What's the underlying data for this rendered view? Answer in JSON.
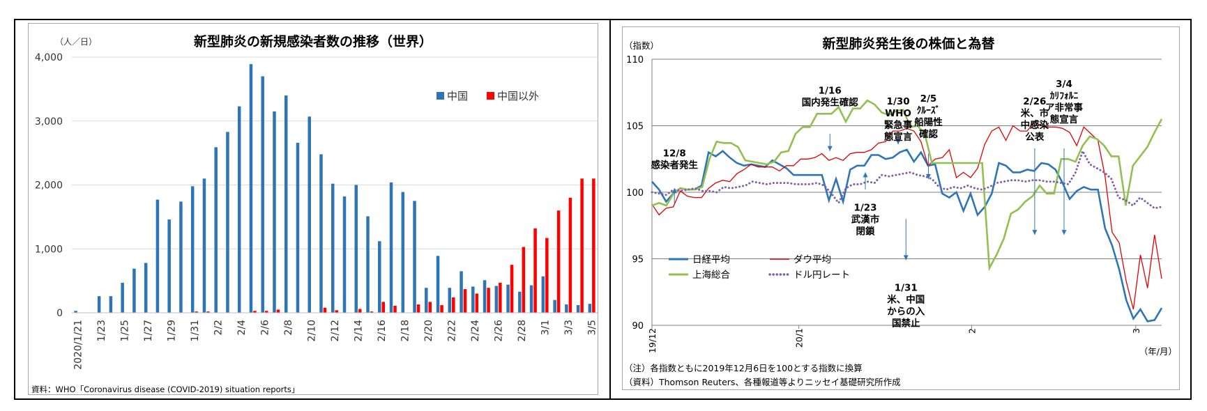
{
  "left": {
    "chart_data": {
      "type": "bar",
      "title": "新型肺炎の新規感染者数の推移（世界）",
      "ylabel": "（人／日）",
      "ylim": [
        0,
        4000
      ],
      "yticks": [
        "4,000",
        "3,000",
        "2,000",
        "1,000",
        "0"
      ],
      "ytick_values": [
        4000,
        3000,
        2000,
        1000,
        0
      ],
      "categories": [
        "2020/1/21",
        "1/22",
        "1/23",
        "1/24",
        "1/25",
        "1/26",
        "1/27",
        "1/28",
        "1/29",
        "1/30",
        "1/31",
        "2/1",
        "2/2",
        "2/3",
        "2/4",
        "2/5",
        "2/6",
        "2/7",
        "2/8",
        "2/9",
        "2/10",
        "2/11",
        "2/12",
        "2/13",
        "2/14",
        "2/15",
        "2/16",
        "2/17",
        "2/18",
        "2/19",
        "2/20",
        "2/21",
        "2/22",
        "2/23",
        "2/24",
        "2/25",
        "2/26",
        "2/27",
        "2/28",
        "2/29",
        "3/1",
        "3/2",
        "3/3",
        "3/4",
        "3/5"
      ],
      "xtick_labels": [
        "2020/1/21",
        "1/23",
        "1/25",
        "1/27",
        "1/29",
        "1/31",
        "2/2",
        "2/4",
        "2/6",
        "2/8",
        "2/10",
        "2/12",
        "2/14",
        "2/16",
        "2/18",
        "2/20",
        "2/22",
        "2/24",
        "2/26",
        "2/28",
        "3/1",
        "3/3",
        "3/5"
      ],
      "series": [
        {
          "name": "中国",
          "color": "#2e75b6",
          "values": [
            30,
            0,
            260,
            260,
            470,
            690,
            780,
            1770,
            1460,
            1740,
            1980,
            2100,
            2590,
            2830,
            3230,
            3890,
            3700,
            3150,
            3400,
            2660,
            3070,
            2480,
            2020,
            1820,
            2000,
            1510,
            1120,
            2040,
            1890,
            1750,
            390,
            890,
            390,
            650,
            410,
            510,
            420,
            440,
            330,
            430,
            570,
            200,
            130,
            120,
            140
          ]
        },
        {
          "name": "中国以外",
          "color": "#ff0000",
          "values": [
            0,
            0,
            0,
            0,
            0,
            0,
            0,
            0,
            0,
            0,
            20,
            20,
            0,
            0,
            0,
            30,
            30,
            50,
            0,
            0,
            0,
            80,
            40,
            0,
            60,
            20,
            170,
            110,
            0,
            130,
            170,
            120,
            240,
            370,
            300,
            390,
            470,
            750,
            1030,
            1320,
            1170,
            1600,
            1800,
            2100,
            2100
          ]
        }
      ],
      "legend_position": "upper-right",
      "grid": true
    },
    "source": "資料：WHO「Coronavirus disease (COVID-2019) situation reports」"
  },
  "right": {
    "chart_data": {
      "type": "line",
      "title": "新型肺炎発生後の株価と為替",
      "ylabel": "（指数）",
      "xlabel": "（年/月）",
      "ylim": [
        90,
        110
      ],
      "yticks": [
        "110",
        "105",
        "100",
        "95",
        "90"
      ],
      "ytick_values": [
        110,
        105,
        100,
        95,
        90
      ],
      "x_range": [
        0,
        59
      ],
      "xticks": [
        {
          "label": "19/12",
          "x": 0
        },
        {
          "label": "20/1",
          "x": 17
        },
        {
          "label": "2",
          "x": 37
        },
        {
          "label": "3",
          "x": 56
        }
      ],
      "series": [
        {
          "name": "日経平均",
          "color": "#2e75b6",
          "style": "solid",
          "values": [
            100.8,
            100.2,
            99.3,
            99.9,
            100.3,
            100.2,
            100.2,
            100.5,
            103.0,
            102.7,
            103.1,
            102.6,
            102.2,
            102.0,
            102.1,
            102.0,
            101.9,
            102.4,
            102.1,
            101.8,
            101.3,
            101.3,
            101.3,
            101.3,
            101.3,
            99.4,
            101.0,
            99.3,
            101.7,
            102.0,
            102.0,
            102.8,
            102.8,
            102.5,
            102.6,
            103.0,
            103.2,
            102.3,
            103.0,
            102.0,
            102.1,
            99.9,
            99.6,
            100.0,
            98.6,
            99.9,
            98.3,
            98.9,
            99.9,
            102.2,
            102.0,
            101.5,
            101.5,
            101.7,
            101.6,
            102.2,
            102.1,
            101.7,
            100.7,
            99.5,
            100.1,
            100.4,
            100.2,
            100.2,
            97.3,
            96.0,
            94.2,
            91.9,
            90.5,
            91.2,
            90.3,
            90.4,
            91.3
          ]
        },
        {
          "name": "ダウ平均",
          "color": "#e00000",
          "style": "solid",
          "values": [
            99.1,
            98.3,
            98.8,
            98.9,
            100.1,
            99.7,
            99.6,
            99.6,
            100.3,
            100.7,
            100.9,
            100.8,
            101.4,
            101.7,
            102.1,
            101.9,
            101.9,
            101.9,
            101.6,
            102.0,
            102.0,
            102.5,
            102.5,
            102.6,
            102.9,
            102.4,
            102.6,
            102.4,
            102.9,
            103.0,
            103.0,
            103.2,
            103.7,
            103.8,
            104.6,
            104.6,
            104.8,
            104.6,
            103.8,
            102.0,
            102.5,
            102.6,
            103.2,
            101.1,
            101.5,
            101.1,
            101.8,
            103.6,
            104.6,
            104.9,
            103.9,
            105.0,
            104.6,
            104.6,
            105.3,
            105.0,
            104.9,
            104.9,
            104.8,
            104.5,
            103.5,
            104.9,
            104.4,
            103.9,
            101.2,
            97.0,
            96.2,
            93.3,
            91.2,
            95.3,
            92.8,
            96.8,
            93.5
          ]
        },
        {
          "name": "上海総合",
          "color": "#92c050",
          "style": "solid",
          "values": [
            99.0,
            99.2,
            99.0,
            99.9,
            100.3,
            100.2,
            100.2,
            100.4,
            102.5,
            103.8,
            103.7,
            103.7,
            103.4,
            102.4,
            102.3,
            102.2,
            102.1,
            102.3,
            103.0,
            103.1,
            104.4,
            104.9,
            104.9,
            105.9,
            105.9,
            105.9,
            106.4,
            105.3,
            106.3,
            106.3,
            106.9,
            106.6,
            106.0,
            105.8,
            106.1,
            106.2,
            104.9,
            105.0,
            104.4,
            102.2,
            102.2,
            102.2,
            102.2,
            102.2,
            102.2,
            102.2,
            102.2,
            94.3,
            95.3,
            96.5,
            98.4,
            98.7,
            99.3,
            99.7,
            100.5,
            99.9,
            99.9,
            102.5,
            102.5,
            102.3,
            103.5,
            104.2,
            104.0,
            103.5,
            102.7,
            102.7,
            99.0,
            102.0,
            102.7,
            103.4,
            104.5,
            105.5
          ]
        },
        {
          "name": "ドル円レート",
          "color": "#7f5fa8",
          "style": "dotted",
          "values": [
            100.0,
            99.9,
            99.8,
            100.2,
            100.1,
            100.2,
            100.3,
            100.1,
            100.1,
            100.0,
            100.4,
            100.3,
            100.4,
            100.5,
            100.8,
            100.7,
            100.6,
            100.7,
            100.7,
            100.7,
            100.6,
            100.6,
            100.6,
            100.7,
            100.5,
            99.9,
            99.2,
            100.3,
            100.6,
            100.6,
            100.8,
            100.7,
            101.3,
            101.2,
            101.3,
            101.4,
            101.5,
            101.3,
            101.2,
            101.0,
            100.4,
            100.2,
            100.4,
            100.3,
            100.5,
            100.3,
            100.2,
            100.4,
            100.7,
            100.8,
            100.9,
            100.9,
            100.8,
            100.9,
            100.9,
            100.8,
            100.8,
            100.7,
            100.6,
            101.5,
            103.1,
            102.1,
            101.8,
            101.5,
            101.0,
            99.6,
            99.4,
            99.0,
            99.6,
            99.2,
            98.8,
            98.9
          ]
        }
      ],
      "annotations": [
        {
          "text": "12/8\n感染者発生",
          "x": 2.6,
          "y": 100.3
        },
        {
          "text": "1/16\n国内発生確認",
          "x": 20.6,
          "y": 103.0
        },
        {
          "text": "1/30\nWHO\n緊急事\n態宣言",
          "x": 28.5,
          "y": 103.5
        },
        {
          "text": "2/5\nｸﾙｰｽﾞ\n船陽性\n確認",
          "x": 32.0,
          "y": 101.0
        },
        {
          "text": "1/23\n武漢市\n閉鎖",
          "x": 24.7,
          "y": 101.5
        },
        {
          "text": "1/31\n米、中国\nからの入\n国禁止",
          "x": 29.4,
          "y": 94.9
        },
        {
          "text": "2/26\n米、市\n中感染\n公表",
          "x": 44.3,
          "y": 96.8
        },
        {
          "text": "3/4\nｶﾘﾌｫﾙﾆ\nア非常事\n態宣言",
          "x": 47.7,
          "y": 96.8
        }
      ],
      "legend_position": "bottom-left",
      "grid": true
    },
    "note1": "（注）各指数ともに2019年12月6日を100とする指数に換算",
    "note2": "（資料）Thomson Reuters、各種報道等よりニッセイ基礎研究所作成"
  }
}
